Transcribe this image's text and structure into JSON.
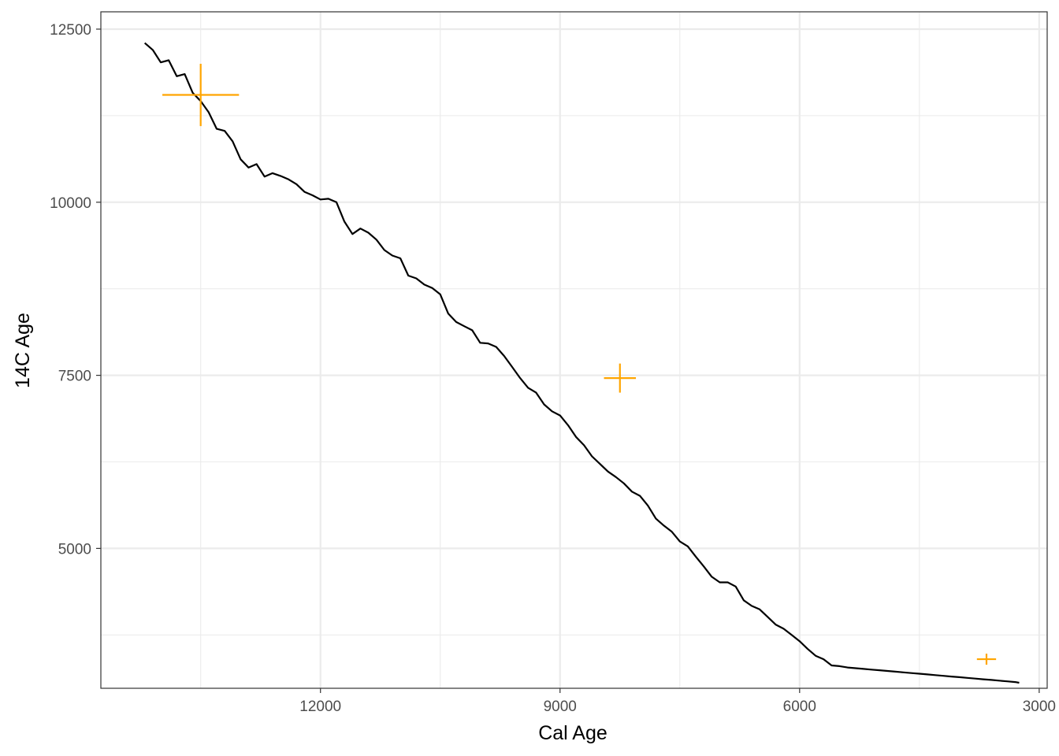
{
  "chart_data": {
    "type": "line",
    "xlabel": "Cal Age",
    "ylabel": "14C Age",
    "x_reversed": true,
    "xlim": [
      14750,
      2900
    ],
    "ylim": [
      2980,
      12750
    ],
    "x_ticks": [
      12000,
      9000,
      6000,
      3000
    ],
    "x_tick_labels": [
      "12000",
      "9000",
      "6000",
      "3000"
    ],
    "y_ticks": [
      5000,
      7500,
      10000,
      12500
    ],
    "y_tick_labels": [
      "5000",
      "7500",
      "10000",
      "12500"
    ],
    "grid": true,
    "colors": {
      "curve": "#000000",
      "points": "#FFA500",
      "grid": "#EBEBEB",
      "frame": "#333333"
    },
    "series": [
      {
        "kind": "calibration-curve",
        "x": [
          14200,
          14100,
          14000,
          13900,
          13800,
          13700,
          13600,
          13500,
          13400,
          13300,
          13200,
          13100,
          13000,
          12900,
          12800,
          12700,
          12600,
          12500,
          12400,
          12300,
          12200,
          12100,
          12000,
          11900,
          11800,
          11700,
          11600,
          11500,
          11400,
          11300,
          11200,
          11100,
          11000,
          10900,
          10800,
          10700,
          10600,
          10500,
          10400,
          10300,
          10200,
          10100,
          10000,
          9900,
          9800,
          9700,
          9600,
          9500,
          9400,
          9300,
          9200,
          9100,
          9000,
          8900,
          8800,
          8700,
          8600,
          8500,
          8400,
          8300,
          8200,
          8100,
          8000,
          7900,
          7800,
          7700,
          7600,
          7500,
          7400,
          7300,
          7200,
          7100,
          7000,
          6900,
          6800,
          6700,
          6600,
          6500,
          6400,
          6300,
          6200,
          6100,
          6000,
          5900,
          5800,
          5700,
          5600,
          5500,
          5400,
          5300,
          5200,
          5100,
          5000,
          4900,
          4800,
          4700,
          4600,
          4500,
          4400,
          4300,
          4200,
          4100,
          4000,
          3900,
          3800,
          3700,
          3600,
          3500,
          3400,
          3300,
          3250
        ],
        "y": [
          12300,
          12200,
          12020,
          12050,
          11820,
          11850,
          11580,
          11460,
          11300,
          11060,
          11030,
          10880,
          10620,
          10500,
          10550,
          10370,
          10420,
          10380,
          10330,
          10260,
          10150,
          10100,
          10040,
          10050,
          10000,
          9720,
          9540,
          9620,
          9560,
          9460,
          9310,
          9230,
          9190,
          8940,
          8900,
          8810,
          8760,
          8670,
          8390,
          8270,
          8210,
          8150,
          7970,
          7960,
          7910,
          7780,
          7620,
          7460,
          7320,
          7250,
          7080,
          6980,
          6920,
          6780,
          6610,
          6490,
          6330,
          6220,
          6110,
          6030,
          5940,
          5820,
          5760,
          5620,
          5430,
          5330,
          5240,
          5100,
          5030,
          4880,
          4740,
          4590,
          4510,
          4510,
          4450,
          4250,
          4170,
          4120,
          4010,
          3900,
          3840,
          3750,
          3660,
          3550,
          3450,
          3400,
          3310,
          3300,
          3280,
          3270,
          3260,
          3250,
          3240,
          3230,
          3220,
          3210,
          3200,
          3190,
          3180,
          3170,
          3160,
          3150,
          3140,
          3130,
          3120,
          3110,
          3100,
          3090,
          3080,
          3070,
          3060
        ]
      },
      {
        "kind": "determinations",
        "points": [
          {
            "x": 13500,
            "y": 11550,
            "x_err": 480,
            "y_err": 450
          },
          {
            "x": 8250,
            "y": 7460,
            "x_err": 200,
            "y_err": 210
          },
          {
            "x": 3660,
            "y": 3400,
            "x_err": 120,
            "y_err": 80
          }
        ]
      }
    ]
  }
}
